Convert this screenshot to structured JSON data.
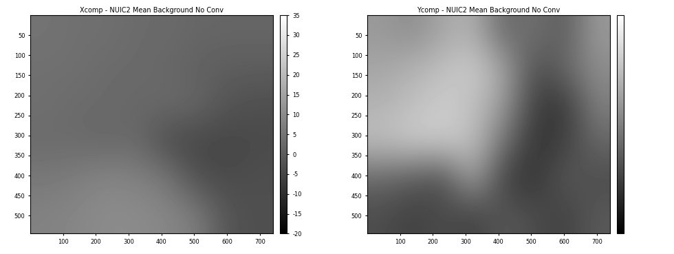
{
  "chart_data": [
    {
      "type": "heatmap",
      "title": "Xcomp - NUIC2 Mean Background No Conv",
      "xlim": [
        0,
        740
      ],
      "ylim": [
        545,
        0
      ],
      "xticks": [
        100,
        200,
        300,
        400,
        500,
        600,
        700
      ],
      "yticks": [
        50,
        100,
        150,
        200,
        250,
        300,
        350,
        400,
        450,
        500
      ],
      "cells": [
        [
          5,
          4,
          4,
          3,
          3,
          2,
          2,
          2
        ],
        [
          4,
          4,
          3,
          3,
          2,
          1,
          0,
          0
        ],
        [
          4,
          3,
          3,
          2,
          3,
          2,
          -2,
          -3
        ],
        [
          3,
          3,
          2,
          3,
          -4,
          -5,
          -5,
          -4
        ],
        [
          6,
          7,
          9,
          8,
          6,
          -3,
          -4,
          -3
        ],
        [
          8,
          9,
          10,
          10,
          9,
          7,
          -2,
          -3
        ]
      ],
      "colorbar_lim": [
        -20,
        35
      ],
      "colorbar_ticks": [
        -20,
        -15,
        -10,
        -5,
        0,
        5,
        10,
        15,
        20,
        25,
        30,
        35
      ]
    },
    {
      "type": "heatmap",
      "title": "Ycomp - NUIC2 Mean Background No Conv",
      "xlim": [
        0,
        740
      ],
      "ylim": [
        545,
        0
      ],
      "xticks": [
        100,
        200,
        300,
        400,
        500,
        600,
        700
      ],
      "yticks": [
        50,
        100,
        150,
        200,
        250,
        300,
        350,
        400,
        450,
        500
      ],
      "cells": [
        [
          2,
          1,
          3,
          4,
          -2,
          -1,
          -3,
          2
        ],
        [
          3,
          4,
          5,
          6,
          3,
          -4,
          -2,
          1
        ],
        [
          4,
          5,
          6,
          5,
          2,
          -5,
          -6,
          0
        ],
        [
          5,
          6,
          6,
          5,
          -1,
          -6,
          -5,
          -2
        ],
        [
          -2,
          -3,
          -4,
          3,
          -5,
          -6,
          -3,
          -4
        ],
        [
          -4,
          -5,
          -4,
          -5,
          -3,
          -4,
          -5,
          -3
        ]
      ],
      "colorbar_lim": [
        -10,
        10
      ]
    }
  ]
}
